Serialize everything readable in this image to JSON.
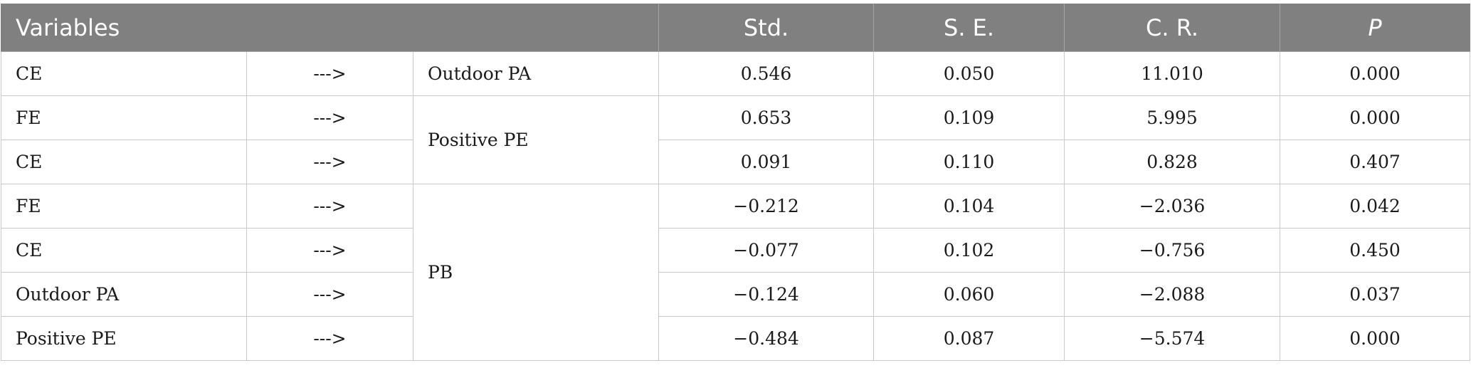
{
  "table": {
    "headers": {
      "variables": "Variables",
      "std": "Std.",
      "se": "S. E.",
      "cr": "C. R.",
      "p": "P"
    },
    "rows": [
      {
        "predictor": "CE",
        "arrow": "--->",
        "outcome": "Outdoor PA",
        "std": "0.546",
        "se": "0.050",
        "cr": "11.010",
        "p": "0.000"
      },
      {
        "predictor": "FE",
        "arrow": "--->",
        "outcome": "Positive PE",
        "std": "0.653",
        "se": "0.109",
        "cr": "5.995",
        "p": "0.000"
      },
      {
        "predictor": "CE",
        "arrow": "--->",
        "outcome": "Positive PE",
        "std": "0.091",
        "se": "0.110",
        "cr": "0.828",
        "p": "0.407"
      },
      {
        "predictor": "FE",
        "arrow": "--->",
        "outcome": "PB",
        "std": "−0.212",
        "se": "0.104",
        "cr": "−2.036",
        "p": "0.042"
      },
      {
        "predictor": "CE",
        "arrow": "--->",
        "outcome": "PB",
        "std": "−0.077",
        "se": "0.102",
        "cr": "−0.756",
        "p": "0.450"
      },
      {
        "predictor": "Outdoor PA",
        "arrow": "--->",
        "outcome": "PB",
        "std": "−0.124",
        "se": "0.060",
        "cr": "−2.088",
        "p": "0.037"
      },
      {
        "predictor": "Positive PE",
        "arrow": "--->",
        "outcome": "PB",
        "std": "−0.484",
        "se": "0.087",
        "cr": "−5.574",
        "p": "0.000"
      }
    ]
  }
}
